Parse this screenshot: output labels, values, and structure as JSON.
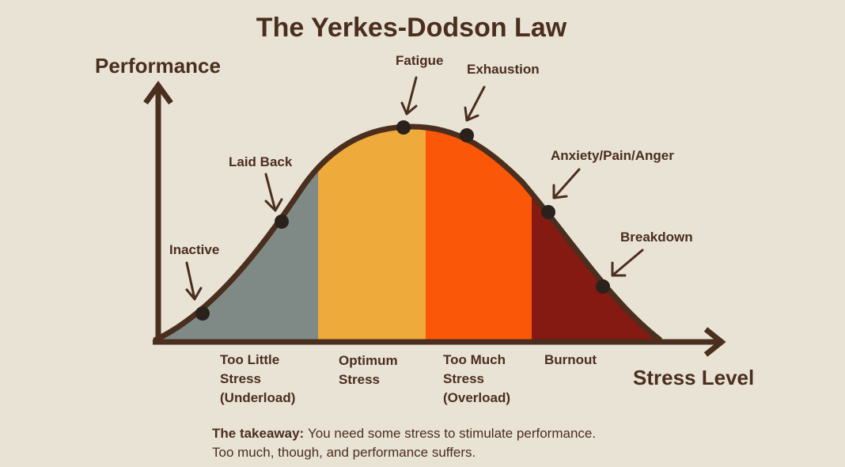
{
  "title": "The Yerkes-Dodson Law",
  "y_axis_label": "Performance",
  "x_axis_label": "Stress Level",
  "points": [
    {
      "label": "Inactive"
    },
    {
      "label": "Laid Back"
    },
    {
      "label": "Fatigue"
    },
    {
      "label": "Exhaustion"
    },
    {
      "label": "Anxiety/Pain/Anger"
    },
    {
      "label": "Breakdown"
    }
  ],
  "zones": [
    {
      "lines": [
        "Too Little",
        "Stress",
        "(Underload)"
      ]
    },
    {
      "lines": [
        "Optimum",
        "Stress"
      ]
    },
    {
      "lines": [
        "Too Much",
        "Stress",
        "(Overload)"
      ]
    },
    {
      "lines": [
        "Burnout"
      ]
    }
  ],
  "takeaway": {
    "lead": "The takeaway:",
    "lines": [
      "You need some stress to stimulate performance.",
      "Too much, though, and performance suffers."
    ]
  }
}
